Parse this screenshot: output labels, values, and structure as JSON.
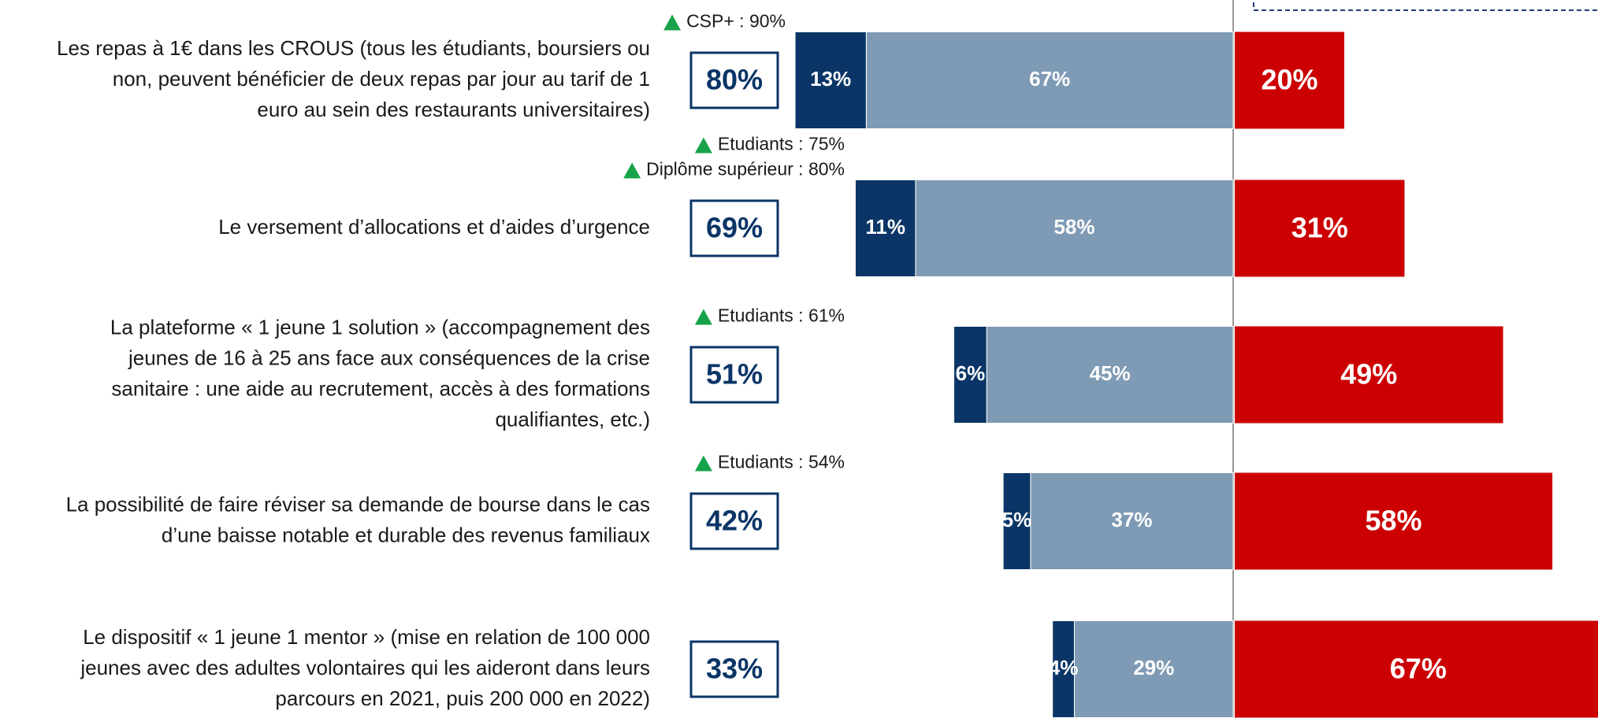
{
  "chart_data": {
    "type": "diverging-bar",
    "categories": [
      [
        "Les repas à 1€ dans les CROUS (tous les étudiants, boursiers ou",
        "non, peuvent bénéficier de deux repas par jour au tarif de 1",
        "euro au sein des restaurants universitaires)"
      ],
      [
        "Le versement d’allocations et d’aides d’urgence"
      ],
      [
        "La plateforme « 1 jeune 1 solution » (accompagnement des",
        "jeunes de 16 à 25 ans face aux conséquences de la crise",
        "sanitaire : une aide au recrutement, accès à des formations",
        "qualifiantes, etc.)"
      ],
      [
        "La possibilité de faire réviser sa demande de bourse dans le cas",
        "d’une baisse notable et durable des revenus familiaux"
      ],
      [
        "Le dispositif « 1 jeune 1 mentor » (mise en relation de 100 000",
        "jeunes avec des adultes volontaires qui les aideront dans leurs",
        "parcours en 2021, puis 200 000 en 2022)"
      ]
    ],
    "series": [
      {
        "color": "#0a3566",
        "side": "left",
        "values": [
          13,
          11,
          6,
          5,
          4
        ],
        "value_labels": [
          "13%",
          "11%",
          "6%",
          "5%",
          "4%"
        ]
      },
      {
        "color": "#7f9ab4",
        "side": "left",
        "values": [
          67,
          58,
          45,
          37,
          29
        ],
        "value_labels": [
          "67%",
          "58%",
          "45%",
          "37%",
          "29%"
        ]
      },
      {
        "color": "#cc0000",
        "side": "right",
        "values": [
          20,
          31,
          49,
          58,
          67
        ],
        "value_labels": [
          "20%",
          "31%",
          "49%",
          "58%",
          "67%"
        ]
      }
    ],
    "totals": {
      "values": [
        80,
        69,
        51,
        42,
        33
      ],
      "value_labels": [
        "80%",
        "69%",
        "51%",
        "42%",
        "33%"
      ]
    },
    "annotations": [
      [
        "CSP+ : 90%"
      ],
      [
        "Etudiants : 75%",
        "Diplôme supérieur : 80%"
      ],
      [
        "Etudiants : 61%"
      ],
      [
        "Etudiants : 54%"
      ],
      []
    ]
  }
}
